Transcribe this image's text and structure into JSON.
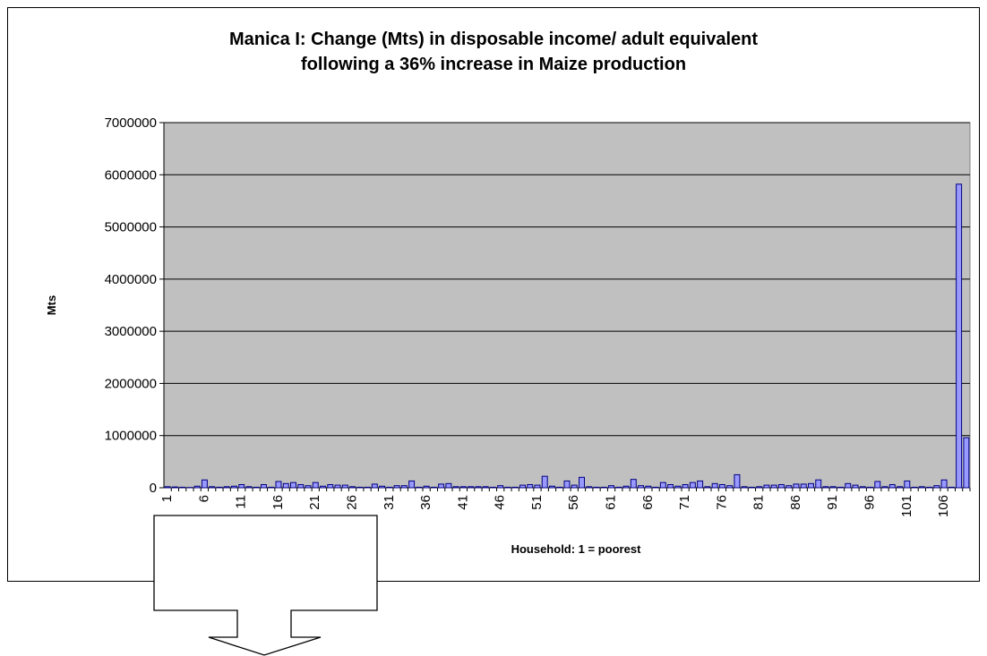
{
  "chart_data": {
    "type": "bar",
    "title": "Manica I: Change (Mts) in disposable income/ adult equivalent following a 36% increase in Maize production",
    "title_lines": [
      "Manica I: Change (Mts) in disposable income/ adult equivalent",
      "following a 36% increase in Maize production"
    ],
    "xlabel": "Household: 1 = poorest",
    "ylabel": "Mts",
    "ylim": [
      0,
      7000000
    ],
    "yticks": [
      0,
      1000000,
      2000000,
      3000000,
      4000000,
      5000000,
      6000000,
      7000000
    ],
    "xtick_labels": [
      "1",
      "6",
      "11",
      "16",
      "21",
      "26",
      "31",
      "36",
      "41",
      "46",
      "51",
      "56",
      "61",
      "66",
      "71",
      "76",
      "81",
      "86",
      "91",
      "96",
      "101",
      "106"
    ],
    "grid": true,
    "colors": {
      "plot_bg": "#c0c0c0",
      "bar_fill": "#9999ff",
      "bar_stroke": "#000080"
    },
    "categories": [
      1,
      2,
      3,
      4,
      5,
      6,
      7,
      8,
      9,
      10,
      11,
      12,
      13,
      14,
      15,
      16,
      17,
      18,
      19,
      20,
      21,
      22,
      23,
      24,
      25,
      26,
      27,
      28,
      29,
      30,
      31,
      32,
      33,
      34,
      35,
      36,
      37,
      38,
      39,
      40,
      41,
      42,
      43,
      44,
      45,
      46,
      47,
      48,
      49,
      50,
      51,
      52,
      53,
      54,
      55,
      56,
      57,
      58,
      59,
      60,
      61,
      62,
      63,
      64,
      65,
      66,
      67,
      68,
      69,
      70,
      71,
      72,
      73,
      74,
      75,
      76,
      77,
      78,
      79,
      80,
      81,
      82,
      83,
      84,
      85,
      86,
      87,
      88,
      89,
      90,
      91,
      92,
      93,
      94,
      95,
      96,
      97,
      98,
      99,
      100,
      101,
      102,
      103,
      104,
      105,
      106,
      107,
      108,
      109
    ],
    "values": [
      20000,
      15000,
      10000,
      5000,
      30000,
      150000,
      20000,
      10000,
      20000,
      30000,
      60000,
      20000,
      10000,
      60000,
      10000,
      120000,
      80000,
      100000,
      60000,
      40000,
      100000,
      30000,
      60000,
      50000,
      50000,
      20000,
      10000,
      10000,
      70000,
      30000,
      10000,
      40000,
      40000,
      130000,
      10000,
      30000,
      10000,
      70000,
      80000,
      20000,
      20000,
      20000,
      20000,
      20000,
      10000,
      40000,
      10000,
      10000,
      50000,
      60000,
      50000,
      220000,
      30000,
      10000,
      130000,
      50000,
      200000,
      20000,
      10000,
      10000,
      40000,
      10000,
      30000,
      160000,
      40000,
      30000,
      10000,
      100000,
      60000,
      30000,
      60000,
      100000,
      130000,
      20000,
      80000,
      60000,
      40000,
      250000,
      20000,
      10000,
      20000,
      50000,
      50000,
      60000,
      40000,
      70000,
      70000,
      80000,
      150000,
      20000,
      20000,
      10000,
      80000,
      50000,
      20000,
      10000,
      120000,
      20000,
      60000,
      20000,
      130000,
      10000,
      20000,
      10000,
      40000,
      150000,
      10000,
      5820000,
      960000
    ]
  }
}
